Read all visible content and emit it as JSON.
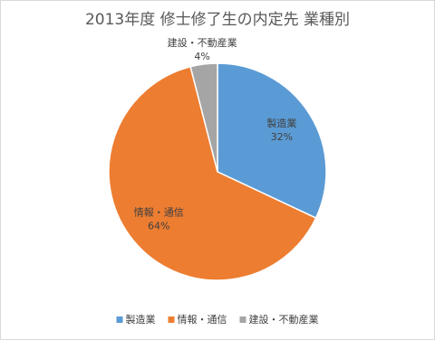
{
  "chart_data": {
    "type": "pie",
    "title": "2013年度 修士修了生の内定先 業種別",
    "categories": [
      "製造業",
      "情報・通信",
      "建設・不動産業"
    ],
    "values": [
      32,
      64,
      4
    ],
    "value_labels": [
      "32%",
      "64%",
      "4%"
    ],
    "colors": [
      "#5b9bd5",
      "#ed7d31",
      "#a5a5a5"
    ],
    "legend": "bottom"
  }
}
